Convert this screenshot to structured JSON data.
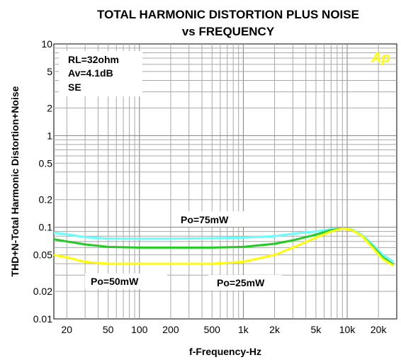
{
  "chart_data": {
    "type": "line",
    "title": [
      "TOTAL HARMONIC DISTORTION PLUS NOISE",
      "vs FREQUENCY"
    ],
    "xlabel": "f-Frequency-Hz",
    "ylabel": "THD+N-Total Harmonic Distortion+Noise",
    "x_scale": "log",
    "y_scale": "log",
    "xlim": [
      15,
      30000
    ],
    "ylim": [
      0.01,
      10
    ],
    "grid": true,
    "x_ticks": [
      {
        "v": 20,
        "label": "20"
      },
      {
        "v": 50,
        "label": "50"
      },
      {
        "v": 100,
        "label": "100"
      },
      {
        "v": 200,
        "label": "200"
      },
      {
        "v": 500,
        "label": "500"
      },
      {
        "v": 1000,
        "label": "1k"
      },
      {
        "v": 2000,
        "label": "2k"
      },
      {
        "v": 5000,
        "label": "5k"
      },
      {
        "v": 10000,
        "label": "10k"
      },
      {
        "v": 20000,
        "label": "20k"
      }
    ],
    "y_ticks": [
      {
        "v": 10,
        "label": "10"
      },
      {
        "v": 5,
        "label": "5"
      },
      {
        "v": 2,
        "label": "2"
      },
      {
        "v": 1,
        "label": "1"
      },
      {
        "v": 0.5,
        "label": "0.5"
      },
      {
        "v": 0.2,
        "label": "0.2"
      },
      {
        "v": 0.1,
        "label": "0.1"
      },
      {
        "v": 0.05,
        "label": "0.05"
      },
      {
        "v": 0.02,
        "label": "0.02"
      },
      {
        "v": 0.01,
        "label": "0.01"
      }
    ],
    "conditions": [
      "RL=32ohm",
      "Av=4.1dB",
      "SE"
    ],
    "logo": "Ap",
    "series": [
      {
        "name": "Po=75mW",
        "color": "#66ffff",
        "points": [
          [
            15,
            0.087
          ],
          [
            20,
            0.084
          ],
          [
            30,
            0.078
          ],
          [
            50,
            0.075
          ],
          [
            100,
            0.075
          ],
          [
            200,
            0.075
          ],
          [
            500,
            0.076
          ],
          [
            1000,
            0.077
          ],
          [
            2000,
            0.08
          ],
          [
            3000,
            0.085
          ],
          [
            5000,
            0.09
          ],
          [
            7000,
            0.095
          ],
          [
            9000,
            0.097
          ],
          [
            11000,
            0.095
          ],
          [
            14000,
            0.082
          ],
          [
            18000,
            0.063
          ],
          [
            22000,
            0.05
          ],
          [
            28000,
            0.042
          ]
        ]
      },
      {
        "name": "Po=50mW",
        "color": "#22cc22",
        "points": [
          [
            15,
            0.074
          ],
          [
            20,
            0.07
          ],
          [
            30,
            0.065
          ],
          [
            50,
            0.061
          ],
          [
            100,
            0.06
          ],
          [
            200,
            0.06
          ],
          [
            500,
            0.06
          ],
          [
            1000,
            0.061
          ],
          [
            2000,
            0.066
          ],
          [
            3000,
            0.072
          ],
          [
            5000,
            0.083
          ],
          [
            7000,
            0.093
          ],
          [
            9000,
            0.097
          ],
          [
            11000,
            0.094
          ],
          [
            14000,
            0.08
          ],
          [
            18000,
            0.06
          ],
          [
            22000,
            0.047
          ],
          [
            28000,
            0.039
          ]
        ]
      },
      {
        "name": "Po=25mW",
        "color": "#ffff00",
        "points": [
          [
            15,
            0.05
          ],
          [
            20,
            0.047
          ],
          [
            30,
            0.042
          ],
          [
            50,
            0.04
          ],
          [
            100,
            0.04
          ],
          [
            200,
            0.04
          ],
          [
            500,
            0.04
          ],
          [
            1000,
            0.042
          ],
          [
            2000,
            0.05
          ],
          [
            3000,
            0.06
          ],
          [
            5000,
            0.077
          ],
          [
            7000,
            0.09
          ],
          [
            9000,
            0.097
          ],
          [
            11000,
            0.094
          ],
          [
            14000,
            0.08
          ],
          [
            18000,
            0.058
          ],
          [
            22000,
            0.045
          ],
          [
            28000,
            0.038
          ]
        ]
      }
    ],
    "annotations": [
      "Po=75mW",
      "Po=50mW",
      "Po=25mW"
    ]
  }
}
